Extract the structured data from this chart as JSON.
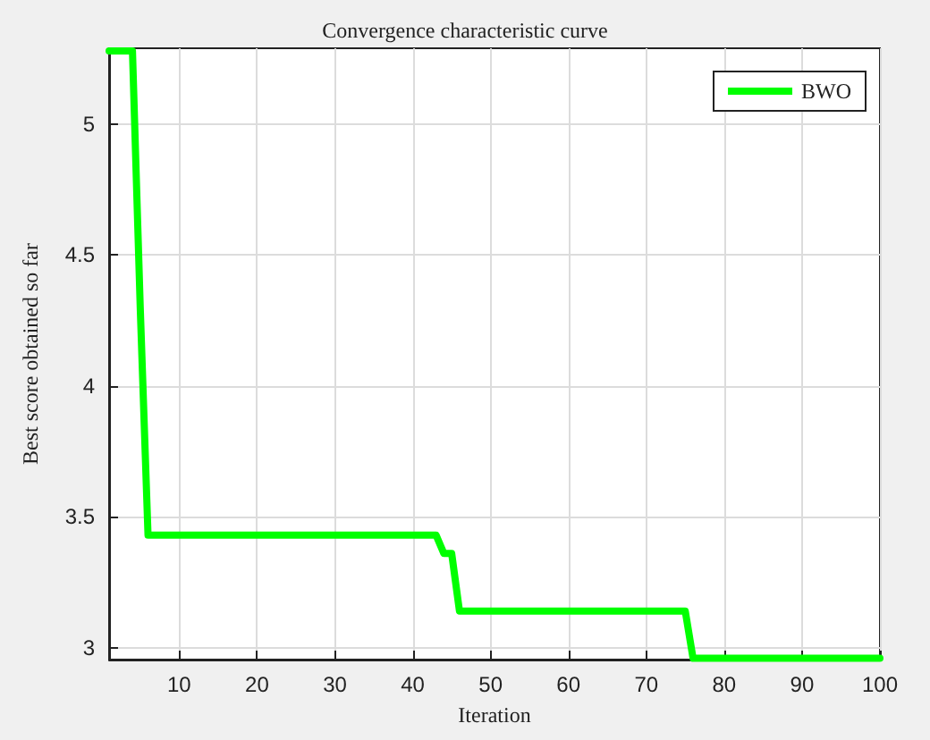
{
  "chart_data": {
    "type": "line",
    "title": "Convergence characteristic curve",
    "xlabel": "Iteration",
    "ylabel": "Best score obtained so far",
    "x": [
      1,
      4,
      5,
      6,
      43,
      44,
      45,
      46,
      75,
      76,
      100
    ],
    "series": [
      {
        "name": "BWO",
        "color": "#00ff00",
        "values": [
          5.28,
          5.28,
          4.3,
          3.43,
          3.43,
          3.36,
          3.36,
          3.14,
          3.14,
          2.96,
          2.96
        ]
      }
    ],
    "xlim": [
      1,
      100
    ],
    "xticks": [
      10,
      20,
      30,
      40,
      50,
      60,
      70,
      80,
      90,
      100
    ],
    "ylim": [
      2.955,
      5.29
    ],
    "yticks": [
      3,
      3.5,
      4,
      4.5,
      5
    ],
    "grid": true,
    "legend": "top right",
    "marker": "none",
    "line_style": "solid"
  }
}
